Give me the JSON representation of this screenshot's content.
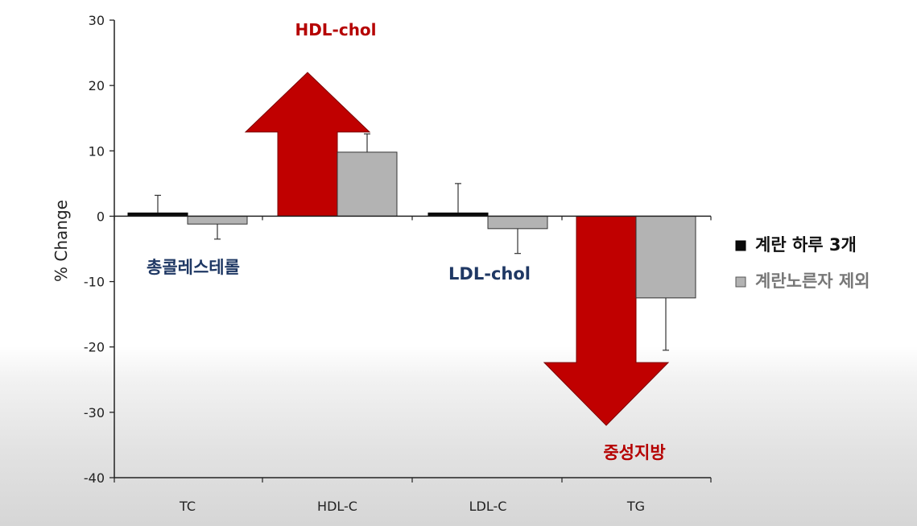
{
  "chart_data": {
    "type": "bar",
    "ylabel": "% Change",
    "xlabel": "",
    "ylim": [
      -40,
      30
    ],
    "yticks": [
      30,
      20,
      10,
      0,
      -10,
      -20,
      -30,
      -40
    ],
    "categories": [
      "TC",
      "HDL-C",
      "LDL-C",
      "TG"
    ],
    "series": [
      {
        "name": "계란 하루 3개",
        "values": [
          0.5,
          22.0,
          0.5,
          -32.0
        ],
        "errors": [
          2.7,
          0,
          4.5,
          0
        ],
        "color": "#0a0a0a"
      },
      {
        "name": "계란노른자 제외",
        "values": [
          -1.2,
          9.8,
          -1.9,
          -12.5
        ],
        "errors": [
          2.3,
          2.8,
          3.8,
          8.0
        ],
        "color": "#b3b3b3"
      }
    ],
    "legend_position": "right",
    "grid": false,
    "annotations": [
      {
        "text": "HDL-chol",
        "category": "HDL-C",
        "direction": "up",
        "color": "#b50000"
      },
      {
        "text": "총콜레스테롤",
        "category": "TC",
        "color": "#1f3864"
      },
      {
        "text": "LDL-chol",
        "category": "LDL-C",
        "color": "#1f3864"
      },
      {
        "text": "중성지방",
        "category": "TG",
        "direction": "down",
        "color": "#b50000"
      }
    ],
    "arrow_color": "#c00000"
  }
}
